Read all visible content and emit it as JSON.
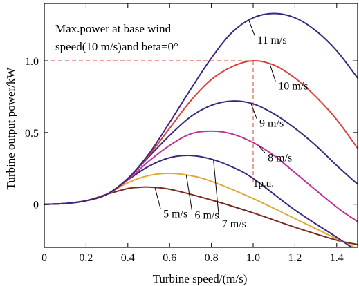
{
  "chart_data": {
    "type": "line",
    "xlabel": "Turbine speed/(m/s)",
    "ylabel": "Turbine output power/kW",
    "xlim": [
      0,
      1.5
    ],
    "ylim": [
      -0.3,
      1.4
    ],
    "x_ticks": [
      {
        "v": 0,
        "t": "0"
      },
      {
        "v": 0.2,
        "t": "0.2"
      },
      {
        "v": 0.4,
        "t": "0.4"
      },
      {
        "v": 0.6,
        "t": "0.6"
      },
      {
        "v": 0.8,
        "t": "0.8"
      },
      {
        "v": 1.0,
        "t": "1.0"
      },
      {
        "v": 1.2,
        "t": "1.2"
      },
      {
        "v": 1.4,
        "t": "1.4"
      }
    ],
    "y_ticks": [
      {
        "v": 0,
        "t": "0"
      },
      {
        "v": 0.5,
        "t": "0.5"
      },
      {
        "v": 1.0,
        "t": "1.0"
      }
    ],
    "annotation_lines": [
      "Max.power at base wind",
      "speed(10 m/s)and beta=0°"
    ],
    "ref_point": {
      "x": 1.0,
      "y": 1.0,
      "label": "1p.u."
    },
    "ref_color": "#d9413a",
    "grid": false,
    "series": [
      {
        "name": "5 m/s",
        "color": "#7b2a1e",
        "x": [
          0,
          0.1,
          0.2,
          0.3,
          0.4,
          0.45,
          0.5,
          0.6,
          0.8,
          1.0,
          1.2,
          1.4,
          1.5
        ],
        "y": [
          0,
          0.005,
          0.025,
          0.07,
          0.11,
          0.118,
          0.12,
          0.105,
          0.03,
          -0.06,
          -0.16,
          -0.25,
          -0.28
        ],
        "label_at": {
          "x": 0.57,
          "y": -0.09
        }
      },
      {
        "name": "6 m/s",
        "color": "#e2a93a",
        "x": [
          0,
          0.1,
          0.2,
          0.3,
          0.4,
          0.5,
          0.6,
          0.7,
          0.8,
          1.0,
          1.2,
          1.4,
          1.5
        ],
        "y": [
          0,
          0.005,
          0.025,
          0.07,
          0.15,
          0.2,
          0.215,
          0.2,
          0.16,
          0.04,
          -0.1,
          -0.24,
          -0.31
        ],
        "label_at": {
          "x": 0.72,
          "y": -0.1
        }
      },
      {
        "name": "7 m/s",
        "color": "#3b2580",
        "x": [
          0,
          0.1,
          0.2,
          0.3,
          0.4,
          0.5,
          0.6,
          0.7,
          0.8,
          0.9,
          1.0,
          1.2,
          1.4,
          1.5
        ],
        "y": [
          0,
          0.005,
          0.025,
          0.07,
          0.17,
          0.265,
          0.325,
          0.34,
          0.315,
          0.26,
          0.18,
          -0.04,
          -0.23,
          -0.33
        ],
        "label_at": {
          "x": 0.85,
          "y": -0.16
        }
      },
      {
        "name": "8 m/s",
        "color": "#c02e97",
        "x": [
          0,
          0.1,
          0.2,
          0.3,
          0.4,
          0.5,
          0.6,
          0.7,
          0.8,
          0.9,
          1.0,
          1.1,
          1.2,
          1.4,
          1.5
        ],
        "y": [
          0,
          0.005,
          0.025,
          0.07,
          0.17,
          0.3,
          0.41,
          0.49,
          0.51,
          0.49,
          0.43,
          0.34,
          0.22,
          -0.02,
          -0.12
        ],
        "label_at": {
          "x": 1.07,
          "y": 0.3
        }
      },
      {
        "name": "9 m/s",
        "color": "#3b2580",
        "x": [
          0,
          0.1,
          0.2,
          0.3,
          0.4,
          0.5,
          0.6,
          0.7,
          0.8,
          0.9,
          1.0,
          1.1,
          1.2,
          1.3,
          1.4,
          1.5
        ],
        "y": [
          0,
          0.005,
          0.025,
          0.07,
          0.18,
          0.33,
          0.48,
          0.61,
          0.69,
          0.72,
          0.7,
          0.63,
          0.53,
          0.41,
          0.27,
          0.14
        ],
        "label_at": {
          "x": 1.03,
          "y": 0.54
        }
      },
      {
        "name": "10 m/s",
        "color": "#d9413a",
        "x": [
          0,
          0.1,
          0.2,
          0.3,
          0.4,
          0.5,
          0.6,
          0.7,
          0.8,
          0.9,
          1.0,
          1.1,
          1.2,
          1.3,
          1.4,
          1.5
        ],
        "y": [
          0,
          0.005,
          0.025,
          0.07,
          0.18,
          0.34,
          0.53,
          0.72,
          0.87,
          0.96,
          1.0,
          0.97,
          0.88,
          0.75,
          0.59,
          0.39
        ],
        "label_at": {
          "x": 1.12,
          "y": 0.8
        }
      },
      {
        "name": "11 m/s",
        "color": "#3b2580",
        "x": [
          0,
          0.1,
          0.2,
          0.3,
          0.4,
          0.5,
          0.6,
          0.7,
          0.8,
          0.9,
          1.0,
          1.1,
          1.2,
          1.3,
          1.4,
          1.5
        ],
        "y": [
          0,
          0.005,
          0.025,
          0.07,
          0.18,
          0.35,
          0.57,
          0.8,
          1.02,
          1.2,
          1.3,
          1.33,
          1.3,
          1.21,
          1.07,
          0.88
        ],
        "label_at": {
          "x": 1.02,
          "y": 1.12
        }
      }
    ]
  }
}
